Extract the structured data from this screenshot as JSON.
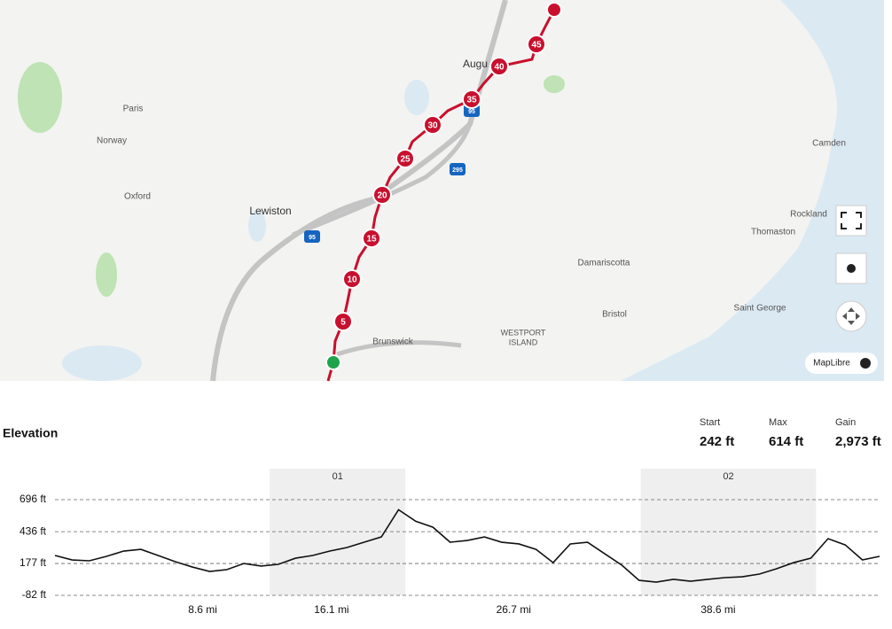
{
  "map": {
    "places": [
      "Paris",
      "Norway",
      "Oxford",
      "Lewiston",
      "Brunswick",
      "Augu",
      "Camden",
      "Rockland",
      "Thomaston",
      "Damariscotta",
      "Bristol",
      "Saint George",
      "WESTPORT",
      "ISLAND"
    ],
    "route_markers": [
      "5",
      "10",
      "15",
      "20",
      "25",
      "30",
      "35",
      "40",
      "45"
    ],
    "shields": [
      "95",
      "295",
      "95"
    ],
    "attribution": "MapLibre"
  },
  "elevation": {
    "title": "Elevation",
    "stats": [
      {
        "label": "Start",
        "value": "242 ft"
      },
      {
        "label": "Max",
        "value": "614 ft"
      },
      {
        "label": "Gain",
        "value": "2,973 ft"
      }
    ]
  },
  "chart_data": {
    "type": "line",
    "x": [
      0,
      1,
      2,
      3,
      4,
      5,
      6,
      7,
      8,
      9,
      10,
      11,
      12,
      13,
      14,
      15,
      16,
      17,
      18,
      19,
      20,
      21,
      22,
      23,
      24,
      25,
      26,
      27,
      28,
      29,
      30,
      31,
      32,
      33,
      34,
      35,
      36,
      37,
      38,
      39,
      40,
      41,
      42,
      43,
      44,
      45,
      46,
      47,
      48
    ],
    "series": [
      {
        "color": "#111111",
        "values": [
          242,
          206,
          199,
          235,
          278,
          292,
          242,
          192,
          148,
          112,
          127,
          177,
          156,
          170,
          220,
          242,
          278,
          307,
          350,
          393,
          614,
          520,
          472,
          350,
          364,
          393,
          350,
          336,
          292,
          184,
          336,
          350,
          256,
          163,
          40,
          26,
          48,
          33,
          48,
          62,
          69,
          91,
          134,
          184,
          220,
          379,
          328,
          206,
          235
        ]
      }
    ],
    "xlim": [
      0,
      48
    ],
    "xticks": [
      {
        "value": 8.6,
        "label": "8.6 mi"
      },
      {
        "value": 16.1,
        "label": "16.1 mi"
      },
      {
        "value": 26.7,
        "label": "26.7 mi"
      },
      {
        "value": 38.6,
        "label": "38.6 mi"
      }
    ],
    "ylim": [
      -82,
      696
    ],
    "yticks": [
      {
        "value": -82,
        "label": "-82 ft"
      },
      {
        "value": 177,
        "label": "177 ft"
      },
      {
        "value": 436,
        "label": "436 ft"
      },
      {
        "value": 696,
        "label": "696 ft"
      }
    ],
    "grid": true,
    "segments": [
      {
        "label": "01",
        "range": [
          12.5,
          20.4
        ]
      },
      {
        "label": "02",
        "range": [
          34.1,
          44.3
        ]
      }
    ]
  }
}
